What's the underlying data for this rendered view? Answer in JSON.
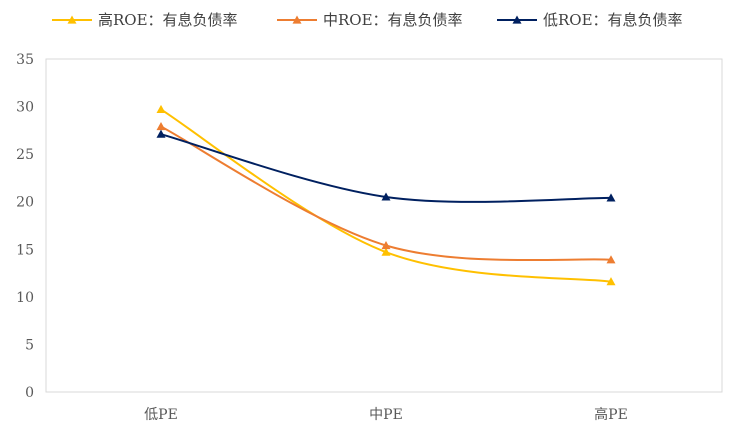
{
  "chart_data": {
    "type": "line",
    "title": "",
    "xlabel": "",
    "ylabel": "",
    "categories": [
      "低PE",
      "中PE",
      "高PE"
    ],
    "ylim": [
      0,
      35
    ],
    "yticks": [
      0,
      5,
      10,
      15,
      20,
      25,
      30,
      35
    ],
    "grid": false,
    "legend_position": "top",
    "smooth": true,
    "marker": "triangle",
    "series": [
      {
        "name": "高ROE：有息负债率",
        "color": "#FFC000",
        "values": [
          29.7,
          14.7,
          11.6
        ]
      },
      {
        "name": "中ROE：有息负债率",
        "color": "#ED7D31",
        "values": [
          27.9,
          15.4,
          13.9
        ]
      },
      {
        "name": "低ROE：有息负债率",
        "color": "#002060",
        "values": [
          27.1,
          20.5,
          20.4
        ]
      }
    ]
  }
}
